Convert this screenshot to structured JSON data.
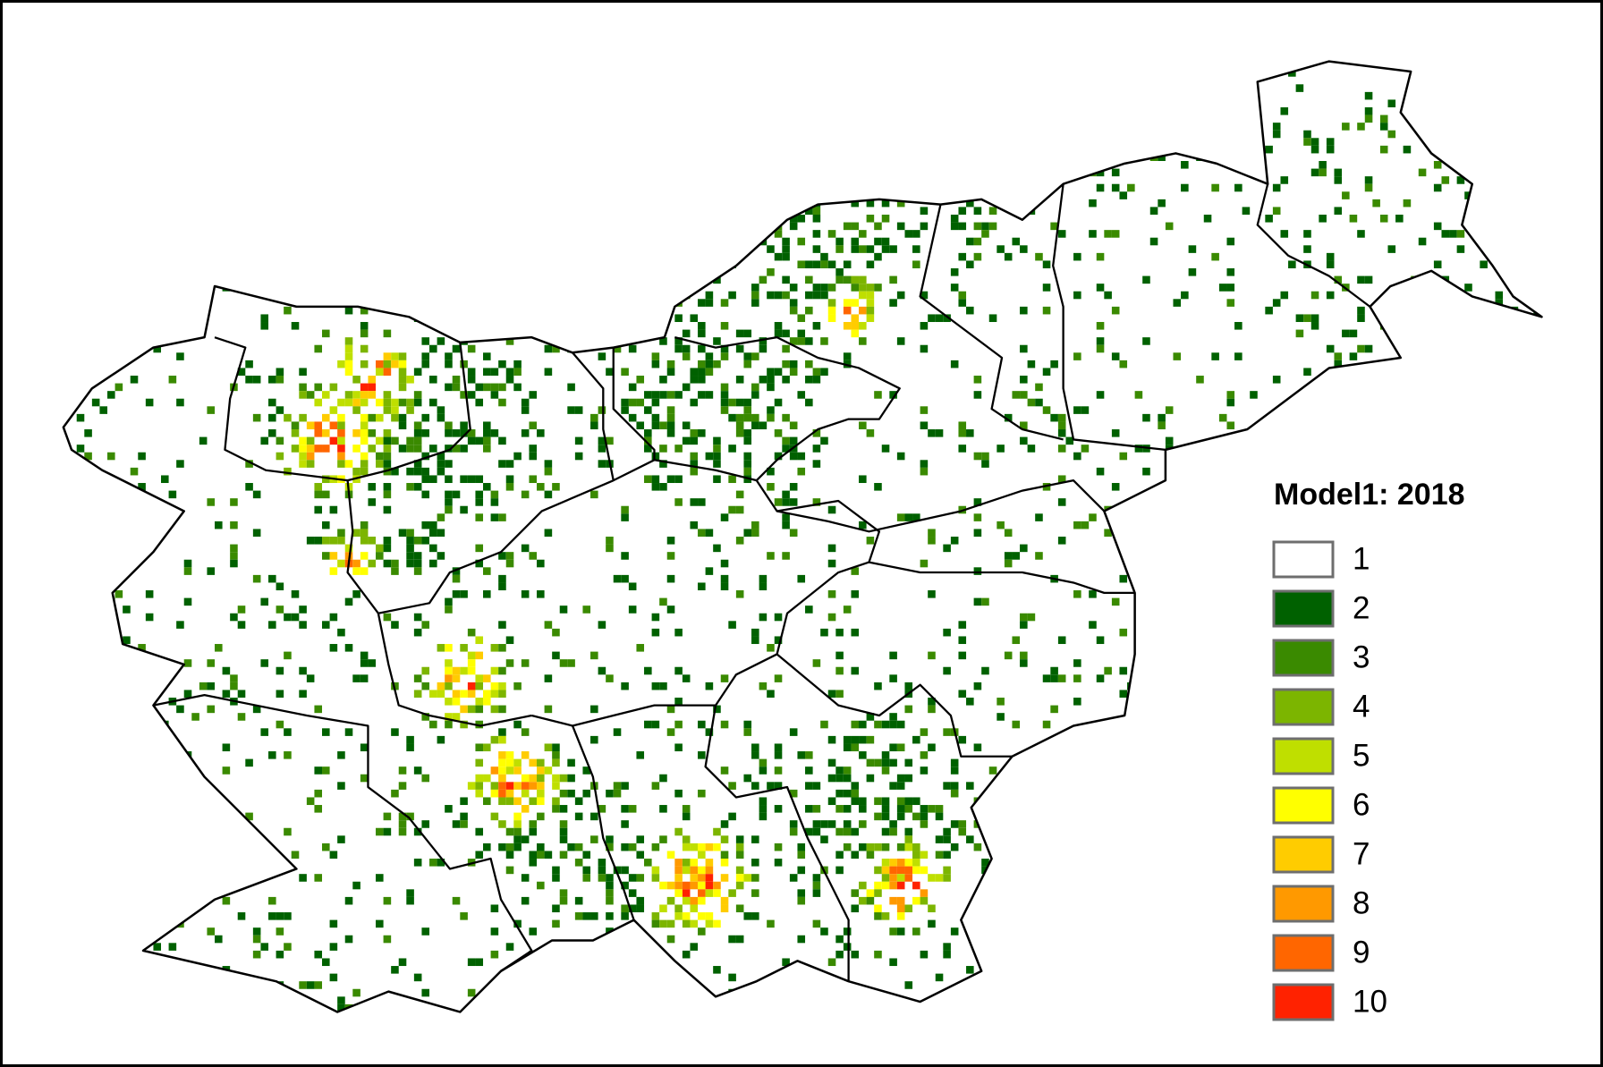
{
  "legend": {
    "title": "Model1: 2018",
    "items": [
      {
        "label": "1",
        "color": "#ffffff"
      },
      {
        "label": "2",
        "color": "#006100"
      },
      {
        "label": "3",
        "color": "#3a8a00"
      },
      {
        "label": "4",
        "color": "#7cb500"
      },
      {
        "label": "5",
        "color": "#bfdf00"
      },
      {
        "label": "6",
        "color": "#ffff00"
      },
      {
        "label": "7",
        "color": "#ffcc00"
      },
      {
        "label": "8",
        "color": "#ff9900"
      },
      {
        "label": "9",
        "color": "#ff6600"
      },
      {
        "label": "10",
        "color": "#ff2200"
      }
    ]
  }
}
